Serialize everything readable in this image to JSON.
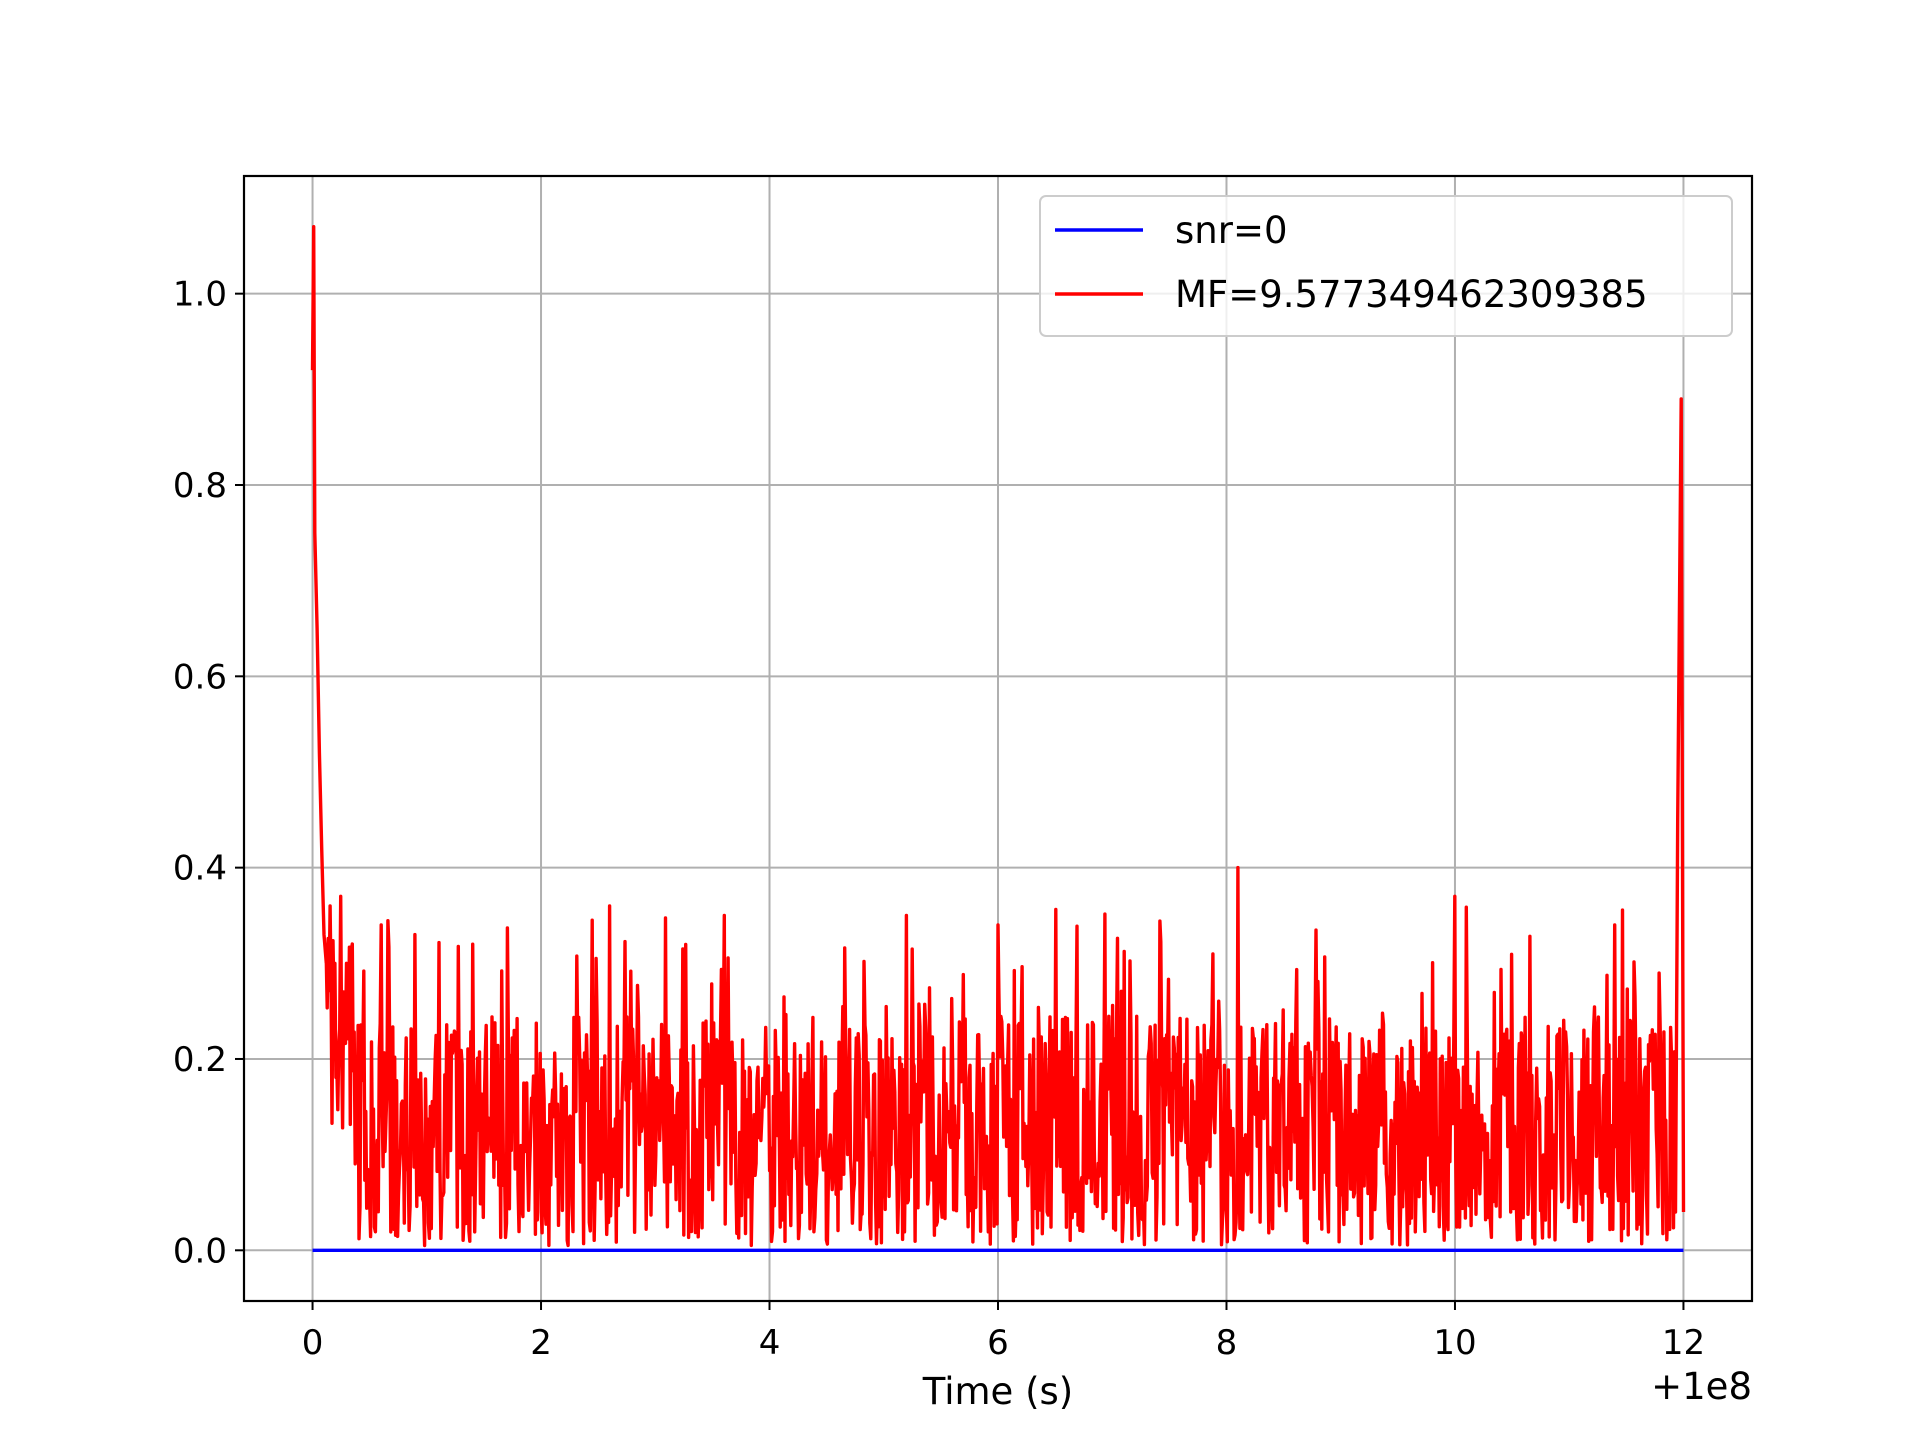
{
  "chart_data": {
    "type": "line",
    "title": "",
    "xlabel": "Time (s)",
    "ylabel": "",
    "x_offset_text": "+1e8",
    "xlim": [
      -0.6,
      12.6
    ],
    "ylim": [
      -0.053,
      1.123
    ],
    "xticks": [
      0,
      2,
      4,
      6,
      8,
      10,
      12
    ],
    "xtick_labels": [
      "0",
      "2",
      "4",
      "6",
      "8",
      "10",
      "12"
    ],
    "yticks": [
      0.0,
      0.2,
      0.4,
      0.6,
      0.8,
      1.0
    ],
    "ytick_labels": [
      "0.0",
      "0.2",
      "0.4",
      "0.6",
      "0.8",
      "1.0"
    ],
    "grid": true,
    "legend_position": "top-right",
    "series": [
      {
        "name": "snr=0",
        "color": "#0000ff",
        "x": [
          0,
          12
        ],
        "y": [
          0,
          0
        ]
      },
      {
        "name": "MF=9.577349462309385",
        "color": "#ff0000",
        "x": [
          0.0,
          0.01,
          0.02,
          0.04,
          0.06,
          0.08,
          0.1,
          0.12,
          0.15,
          0.2,
          0.25,
          0.3,
          0.6,
          0.9,
          1.4,
          2.6,
          3.6,
          5.2,
          6.0,
          8.1,
          10.0,
          11.4,
          11.9,
          11.95,
          11.98,
          12.0
        ],
        "y": [
          0.92,
          1.07,
          0.75,
          0.65,
          0.52,
          0.42,
          0.33,
          0.3,
          0.36,
          0.3,
          0.37,
          0.3,
          0.34,
          0.33,
          0.32,
          0.36,
          0.35,
          0.35,
          0.34,
          0.4,
          0.37,
          0.34,
          0.2,
          0.45,
          0.89,
          0.04
        ]
      }
    ],
    "noise_band": {
      "series": "MF=9.577349462309385",
      "typical_range": [
        0.0,
        0.3
      ],
      "mean": 0.1
    }
  }
}
